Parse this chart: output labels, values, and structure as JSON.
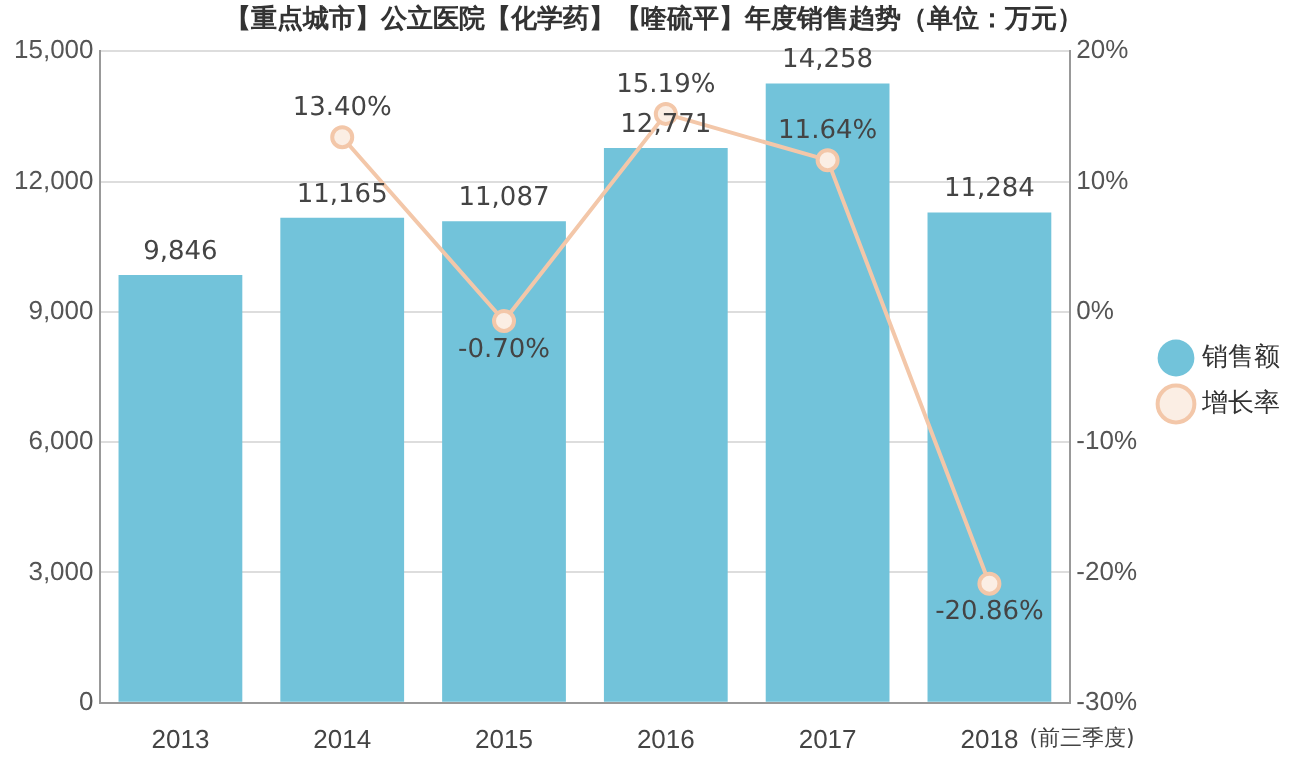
{
  "chart_data": {
    "type": "bar",
    "title": "【重点城市】公立医院【化学药】【喹硫平】年度销售趋势（单位：万元）",
    "categories": [
      "2013",
      "2014",
      "2015",
      "2016",
      "2017",
      "2018"
    ],
    "series": [
      {
        "name": "销售额",
        "color": "#72c3da",
        "values": [
          9846,
          11165,
          11087,
          12771,
          14258,
          11284
        ],
        "value_labels": [
          "9,846",
          "11,165",
          "11,087",
          "12,771",
          "14,258",
          "11,284"
        ]
      },
      {
        "name": "增长率",
        "type": "line",
        "axis": "y2",
        "color": "#f3c7a9",
        "values": [
          null,
          13.4,
          -0.7,
          15.19,
          11.64,
          -20.86
        ],
        "value_labels": [
          null,
          "13.40%",
          "-0.70%",
          "15.19%",
          "11.64%",
          "-20.86%"
        ]
      }
    ],
    "ylim": [
      0,
      15000
    ],
    "yticks": [
      0,
      {
        "value": 3000,
        "label": "3,000"
      },
      {
        "value": 6000,
        "label": "6,000"
      },
      {
        "value": 9000,
        "label": "9,000"
      },
      {
        "value": 12000,
        "label": "12,000"
      },
      {
        "value": 15000,
        "label": "15,000"
      }
    ],
    "y2lim": [
      -30,
      20
    ],
    "y2ticks": [
      {
        "value": -30,
        "label": "-30%"
      },
      {
        "value": -20,
        "label": "-20%"
      },
      {
        "value": -10,
        "label": "-10%"
      },
      {
        "value": 0,
        "label": "0%"
      },
      {
        "value": 10,
        "label": "10%"
      },
      {
        "value": 20,
        "label": "20%"
      }
    ],
    "grid": "y",
    "legend": "right",
    "marker": "circle",
    "line_style": "solid",
    "annotations": [
      "(前三季度)"
    ]
  }
}
